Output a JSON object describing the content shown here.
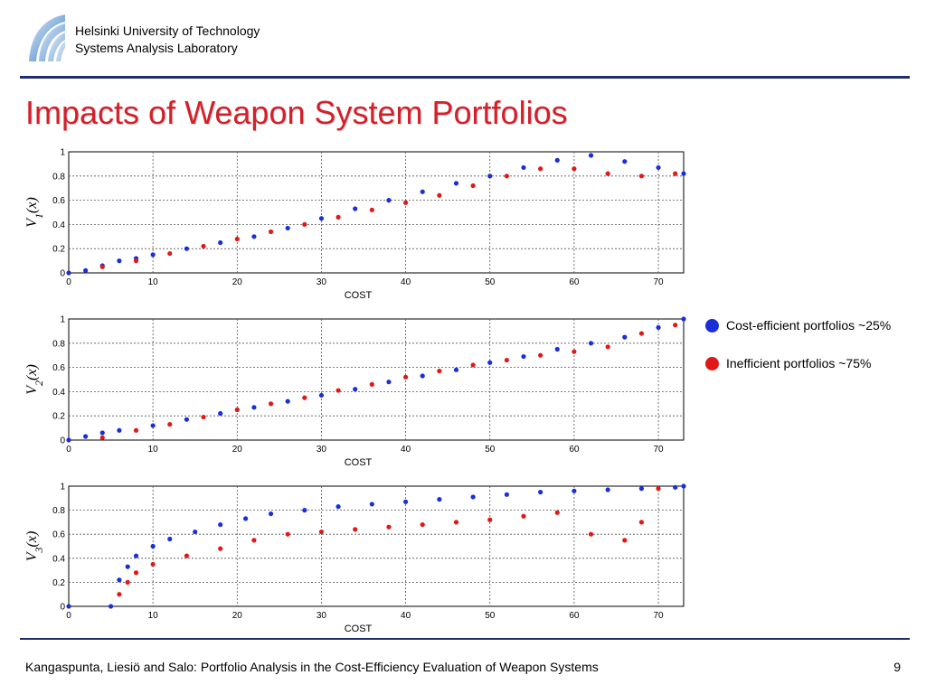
{
  "header": {
    "institution_line1": "Helsinki University of Technology",
    "institution_line2": "Systems Analysis Laboratory"
  },
  "slide": {
    "title": "Impacts of Weapon System Portfolios"
  },
  "footer": {
    "citation": "Kangaspunta, Liesiö and Salo: Portfolio Analysis in the Cost-Efficiency Evaluation of Weapon Systems",
    "page_number": "9"
  },
  "colors": {
    "efficient": "#1a2fd6",
    "inefficient": "#e01818",
    "title": "#d4202a"
  },
  "legend": {
    "items": [
      {
        "label": "Cost-efficient portfolios ~25%",
        "color": "#1a2fd6"
      },
      {
        "label": "Inefficient portfolios ~75%",
        "color": "#e01818"
      }
    ]
  },
  "chart_data": [
    {
      "type": "scatter",
      "ylabel_main": "V",
      "ylabel_sub": "1",
      "ylabel_arg": "(x)",
      "xlabel": "COST",
      "xlim": [
        0,
        73
      ],
      "ylim": [
        0,
        1
      ],
      "xticks": [
        "0",
        "10",
        "20",
        "30",
        "40",
        "50",
        "60",
        "70"
      ],
      "yticks": [
        "0",
        "0.2",
        "0.4",
        "0.6",
        "0.8",
        "1"
      ],
      "grid": true,
      "series": [
        {
          "name": "Cost-efficient portfolios ~25%",
          "x": [
            0,
            2,
            4,
            6,
            8,
            10,
            14,
            18,
            22,
            26,
            30,
            34,
            38,
            42,
            46,
            50,
            54,
            58,
            62,
            66,
            70,
            73
          ],
          "y": [
            0,
            0.02,
            0.06,
            0.1,
            0.12,
            0.15,
            0.2,
            0.25,
            0.3,
            0.37,
            0.45,
            0.53,
            0.6,
            0.67,
            0.74,
            0.8,
            0.87,
            0.93,
            0.97,
            0.92,
            0.87,
            0.82
          ]
        },
        {
          "name": "Inefficient portfolios ~75%",
          "x": [
            4,
            8,
            12,
            16,
            20,
            24,
            28,
            32,
            36,
            40,
            44,
            48,
            52,
            56,
            60,
            64,
            68,
            72
          ],
          "y": [
            0.05,
            0.1,
            0.16,
            0.22,
            0.28,
            0.34,
            0.4,
            0.46,
            0.52,
            0.58,
            0.64,
            0.72,
            0.8,
            0.86,
            0.86,
            0.82,
            0.8,
            0.82
          ]
        }
      ]
    },
    {
      "type": "scatter",
      "ylabel_main": "V",
      "ylabel_sub": "2",
      "ylabel_arg": "(x)",
      "xlabel": "COST",
      "xlim": [
        0,
        73
      ],
      "ylim": [
        0,
        1
      ],
      "xticks": [
        "0",
        "10",
        "20",
        "30",
        "40",
        "50",
        "60",
        "70"
      ],
      "yticks": [
        "0",
        "0.2",
        "0.4",
        "0.6",
        "0.8",
        "1"
      ],
      "grid": true,
      "series": [
        {
          "name": "Cost-efficient portfolios ~25%",
          "x": [
            0,
            2,
            4,
            6,
            10,
            14,
            18,
            22,
            26,
            30,
            34,
            38,
            42,
            46,
            50,
            54,
            58,
            62,
            66,
            70,
            73
          ],
          "y": [
            0,
            0.03,
            0.06,
            0.08,
            0.12,
            0.17,
            0.22,
            0.27,
            0.32,
            0.37,
            0.42,
            0.48,
            0.53,
            0.58,
            0.64,
            0.69,
            0.75,
            0.8,
            0.85,
            0.93,
            1.0
          ]
        },
        {
          "name": "Inefficient portfolios ~75%",
          "x": [
            4,
            8,
            12,
            16,
            20,
            24,
            28,
            32,
            36,
            40,
            44,
            48,
            52,
            56,
            60,
            64,
            68,
            72
          ],
          "y": [
            0.02,
            0.08,
            0.13,
            0.19,
            0.25,
            0.3,
            0.35,
            0.41,
            0.46,
            0.52,
            0.57,
            0.62,
            0.66,
            0.7,
            0.73,
            0.77,
            0.88,
            0.95
          ]
        }
      ]
    },
    {
      "type": "scatter",
      "ylabel_main": "V",
      "ylabel_sub": "3",
      "ylabel_arg": "(x)",
      "xlabel": "COST",
      "xlim": [
        0,
        73
      ],
      "ylim": [
        0,
        1
      ],
      "xticks": [
        "0",
        "10",
        "20",
        "30",
        "40",
        "50",
        "60",
        "70"
      ],
      "yticks": [
        "0",
        "0.2",
        "0.4",
        "0.6",
        "0.8",
        "1"
      ],
      "grid": true,
      "series": [
        {
          "name": "Cost-efficient portfolios ~25%",
          "x": [
            0,
            5,
            6,
            7,
            8,
            10,
            12,
            15,
            18,
            21,
            24,
            28,
            32,
            36,
            40,
            44,
            48,
            52,
            56,
            60,
            64,
            68,
            72,
            73
          ],
          "y": [
            0,
            0,
            0.22,
            0.33,
            0.42,
            0.5,
            0.56,
            0.62,
            0.68,
            0.73,
            0.77,
            0.8,
            0.83,
            0.85,
            0.87,
            0.89,
            0.91,
            0.93,
            0.95,
            0.96,
            0.97,
            0.98,
            0.99,
            1.0
          ]
        },
        {
          "name": "Inefficient portfolios ~75%",
          "x": [
            6,
            7,
            8,
            10,
            14,
            18,
            22,
            26,
            30,
            34,
            38,
            42,
            46,
            50,
            54,
            58,
            62,
            66,
            68,
            70
          ],
          "y": [
            0.1,
            0.2,
            0.28,
            0.35,
            0.42,
            0.48,
            0.55,
            0.6,
            0.62,
            0.64,
            0.66,
            0.68,
            0.7,
            0.72,
            0.75,
            0.78,
            0.6,
            0.55,
            0.7,
            0.98
          ]
        }
      ]
    }
  ]
}
